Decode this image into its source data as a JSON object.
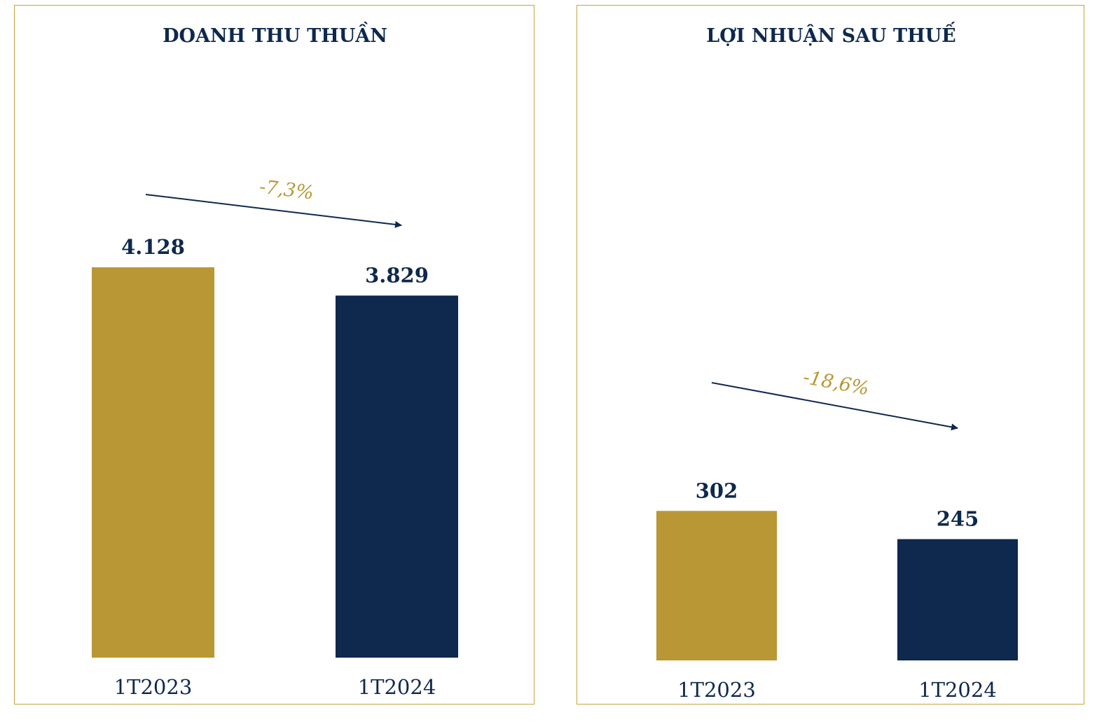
{
  "colors": {
    "gold": "#b99734",
    "navy": "#0e284e",
    "border": "#c8a23c",
    "change_text": "#b99734"
  },
  "chart_data": [
    {
      "type": "bar",
      "title": "DOANH THU THUẦN",
      "categories": [
        "1T2023",
        "1T2024"
      ],
      "values": [
        4128,
        3829
      ],
      "value_labels": [
        "4.128",
        "3.829"
      ],
      "change_label": "-7,3%",
      "ylim": [
        0,
        4750
      ]
    },
    {
      "type": "bar",
      "title": "LỢI NHUẬN SAU THUẾ",
      "categories": [
        "1T2023",
        "1T2024"
      ],
      "values": [
        302,
        245
      ],
      "value_labels": [
        "302",
        "245"
      ],
      "change_label": "-18,6%",
      "ylim": [
        0,
        715
      ]
    }
  ]
}
